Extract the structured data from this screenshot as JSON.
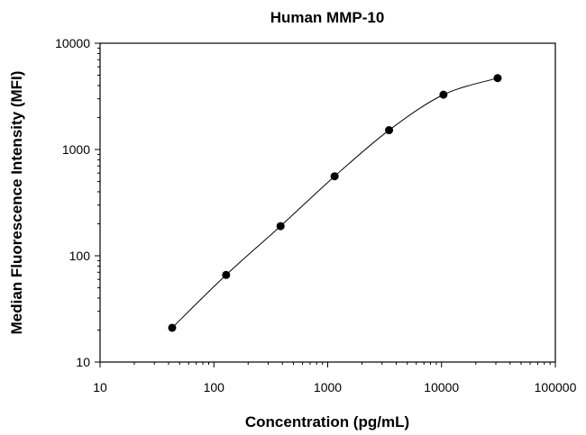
{
  "chart_data": {
    "type": "scatter",
    "title": "Human MMP-10",
    "xlabel": "Concentration (pg/mL)",
    "ylabel": "Median Fluorescence Intensity (MFI)",
    "xscale": "log",
    "yscale": "log",
    "xlim": [
      10,
      100000
    ],
    "ylim": [
      10,
      10000
    ],
    "x_ticks": [
      "10",
      "100",
      "1000",
      "10000",
      "100000"
    ],
    "y_ticks": [
      "10",
      "100",
      "1000",
      "10000"
    ],
    "grid": false,
    "legend": "none",
    "fit_curve": true,
    "series": [
      {
        "x": [
          43,
          128,
          385,
          1150,
          3460,
          10400,
          31100
        ],
        "y": [
          21,
          66,
          190,
          560,
          1520,
          3280,
          4700
        ]
      }
    ]
  }
}
